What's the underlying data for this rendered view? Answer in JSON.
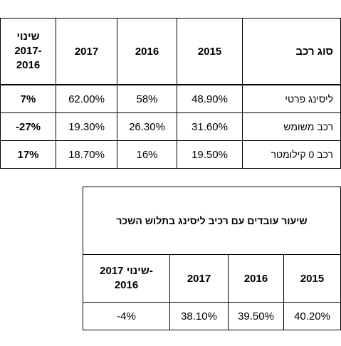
{
  "table1": {
    "headers": {
      "kind": "סוג רכב",
      "y2015": "2015",
      "y2016": "2016",
      "y2017": "2017",
      "change_line1": "שינוי",
      "change_line2": "2017-",
      "change_line3": "2016"
    },
    "rows": [
      {
        "kind": "ליסינג פרטי",
        "y2015": "48.90%",
        "y2016": "58%",
        "y2017": "62.00%",
        "change": "7%"
      },
      {
        "kind": "רכב משומש",
        "y2015": "31.60%",
        "y2016": "26.30%",
        "y2017": "19.30%",
        "change": "-27%"
      },
      {
        "kind": "רכב 0 קילומטר",
        "y2015": "19.50%",
        "y2016": "16%",
        "y2017": "18.70%",
        "change": "17%"
      }
    ]
  },
  "table2": {
    "title": "שיעור עובדים עם רכיב ליסינג בתלוש השכר",
    "headers": {
      "y2015": "2015",
      "y2016": "2016",
      "y2017": "2017",
      "change_line1": "שינוי 2017-",
      "change_line2": "2016"
    },
    "row": {
      "y2015": "40.20%",
      "y2016": "39.50%",
      "y2017": "38.10%",
      "change": "-4%"
    }
  }
}
